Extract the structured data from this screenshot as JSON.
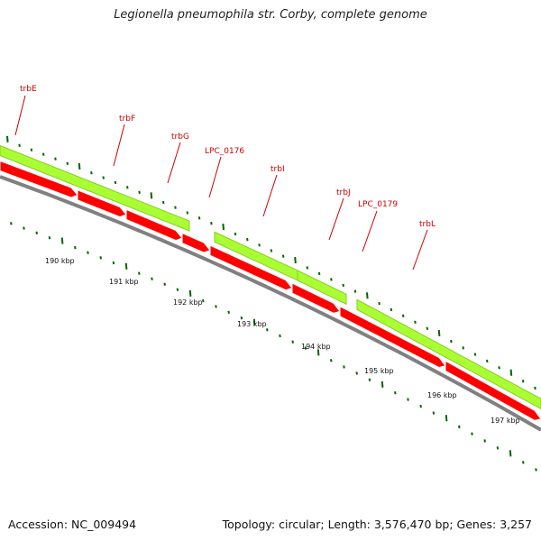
{
  "header": {
    "title": "Legionella pneumophila str. Corby, complete genome"
  },
  "footer": {
    "accession": "Accession: NC_009494",
    "summary": "Topology: circular; Length: 3,576,470 bp; Genes: 3,257"
  },
  "colors": {
    "forward_gene": "#aaff33",
    "forward_gene_edge": "#88cc22",
    "reverse_gene": "#ff0000",
    "reverse_gene_edge": "#cc0000",
    "backbone": "#808080",
    "tick": "#006600",
    "label": "#cc0000"
  },
  "gene_labels": [
    "trbE",
    "trbF",
    "trbG",
    "LPC_0176",
    "trbI",
    "trbJ",
    "LPC_0179",
    "trbL"
  ],
  "kbp_labels": [
    "190 kbp",
    "191 kbp",
    "192 kbp",
    "193 kbp",
    "194 kbp",
    "195 kbp",
    "196 kbp",
    "197 kbp"
  ]
}
